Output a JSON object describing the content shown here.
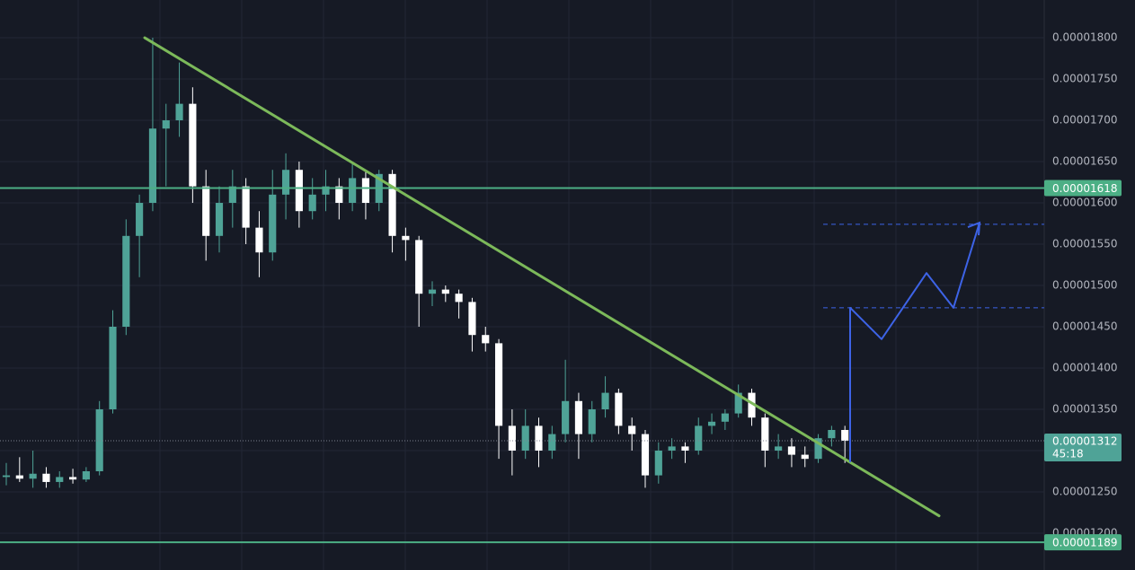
{
  "chart_data": {
    "type": "candlestick",
    "up_color": "#4fa397",
    "down_color": "#ffffff",
    "open": [
      1.268e-05,
      1.27e-05,
      1.266e-05,
      1.272e-05,
      1.262e-05,
      1.268e-05,
      1.265e-05,
      1.275e-05,
      1.35e-05,
      1.45e-05,
      1.56e-05,
      1.6e-05,
      1.69e-05,
      1.7e-05,
      1.72e-05,
      1.62e-05,
      1.56e-05,
      1.6e-05,
      1.62e-05,
      1.57e-05,
      1.54e-05,
      1.61e-05,
      1.64e-05,
      1.59e-05,
      1.61e-05,
      1.62e-05,
      1.6e-05,
      1.63e-05,
      1.6e-05,
      1.635e-05,
      1.56e-05,
      1.555e-05,
      1.49e-05,
      1.495e-05,
      1.49e-05,
      1.48e-05,
      1.44e-05,
      1.43e-05,
      1.33e-05,
      1.3e-05,
      1.33e-05,
      1.3e-05,
      1.32e-05,
      1.36e-05,
      1.32e-05,
      1.35e-05,
      1.37e-05,
      1.33e-05,
      1.32e-05,
      1.27e-05,
      1.3e-05,
      1.305e-05,
      1.3e-05,
      1.33e-05,
      1.335e-05,
      1.345e-05,
      1.37e-05,
      1.34e-05,
      1.3e-05,
      1.305e-05,
      1.295e-05,
      1.29e-05,
      1.315e-05,
      1.325e-05
    ],
    "high": [
      1.285e-05,
      1.292e-05,
      1.3e-05,
      1.28e-05,
      1.275e-05,
      1.278e-05,
      1.28e-05,
      1.36e-05,
      1.47e-05,
      1.58e-05,
      1.61e-05,
      1.8e-05,
      1.72e-05,
      1.77e-05,
      1.74e-05,
      1.64e-05,
      1.62e-05,
      1.64e-05,
      1.63e-05,
      1.59e-05,
      1.64e-05,
      1.66e-05,
      1.65e-05,
      1.63e-05,
      1.64e-05,
      1.63e-05,
      1.65e-05,
      1.64e-05,
      1.64e-05,
      1.64e-05,
      1.57e-05,
      1.56e-05,
      1.505e-05,
      1.5e-05,
      1.495e-05,
      1.485e-05,
      1.45e-05,
      1.435e-05,
      1.35e-05,
      1.35e-05,
      1.34e-05,
      1.33e-05,
      1.41e-05,
      1.37e-05,
      1.36e-05,
      1.39e-05,
      1.375e-05,
      1.34e-05,
      1.325e-05,
      1.31e-05,
      1.315e-05,
      1.31e-05,
      1.34e-05,
      1.345e-05,
      1.35e-05,
      1.38e-05,
      1.375e-05,
      1.345e-05,
      1.32e-05,
      1.315e-05,
      1.305e-05,
      1.32e-05,
      1.33e-05,
      1.33e-05
    ],
    "low": [
      1.258e-05,
      1.262e-05,
      1.255e-05,
      1.255e-05,
      1.255e-05,
      1.26e-05,
      1.262e-05,
      1.27e-05,
      1.345e-05,
      1.44e-05,
      1.51e-05,
      1.59e-05,
      1.62e-05,
      1.68e-05,
      1.6e-05,
      1.53e-05,
      1.54e-05,
      1.57e-05,
      1.55e-05,
      1.51e-05,
      1.53e-05,
      1.58e-05,
      1.57e-05,
      1.58e-05,
      1.59e-05,
      1.58e-05,
      1.59e-05,
      1.58e-05,
      1.59e-05,
      1.54e-05,
      1.53e-05,
      1.45e-05,
      1.475e-05,
      1.48e-05,
      1.46e-05,
      1.42e-05,
      1.42e-05,
      1.29e-05,
      1.27e-05,
      1.29e-05,
      1.28e-05,
      1.29e-05,
      1.31e-05,
      1.29e-05,
      1.31e-05,
      1.34e-05,
      1.32e-05,
      1.3e-05,
      1.255e-05,
      1.26e-05,
      1.29e-05,
      1.285e-05,
      1.295e-05,
      1.32e-05,
      1.325e-05,
      1.34e-05,
      1.33e-05,
      1.28e-05,
      1.29e-05,
      1.28e-05,
      1.28e-05,
      1.285e-05,
      1.305e-05,
      1.285e-05
    ],
    "close": [
      1.27e-05,
      1.266e-05,
      1.272e-05,
      1.262e-05,
      1.268e-05,
      1.265e-05,
      1.275e-05,
      1.35e-05,
      1.45e-05,
      1.56e-05,
      1.6e-05,
      1.69e-05,
      1.7e-05,
      1.72e-05,
      1.62e-05,
      1.56e-05,
      1.6e-05,
      1.62e-05,
      1.57e-05,
      1.54e-05,
      1.61e-05,
      1.64e-05,
      1.59e-05,
      1.61e-05,
      1.62e-05,
      1.6e-05,
      1.63e-05,
      1.6e-05,
      1.635e-05,
      1.56e-05,
      1.555e-05,
      1.49e-05,
      1.495e-05,
      1.49e-05,
      1.48e-05,
      1.44e-05,
      1.43e-05,
      1.33e-05,
      1.3e-05,
      1.33e-05,
      1.3e-05,
      1.32e-05,
      1.36e-05,
      1.32e-05,
      1.35e-05,
      1.37e-05,
      1.33e-05,
      1.32e-05,
      1.27e-05,
      1.3e-05,
      1.305e-05,
      1.3e-05,
      1.33e-05,
      1.335e-05,
      1.345e-05,
      1.37e-05,
      1.34e-05,
      1.3e-05,
      1.305e-05,
      1.295e-05,
      1.29e-05,
      1.315e-05,
      1.325e-05,
      1.312e-05
    ],
    "ylim": [
      1.1554e-05,
      1.8457e-05
    ],
    "yticks": [
      {
        "value": 1.8e-05,
        "label": "0.00001800"
      },
      {
        "value": 1.75e-05,
        "label": "0.00001750"
      },
      {
        "value": 1.7e-05,
        "label": "0.00001700"
      },
      {
        "value": 1.65e-05,
        "label": "0.00001650"
      },
      {
        "value": 1.6e-05,
        "label": "0.00001600"
      },
      {
        "value": 1.55e-05,
        "label": "0.00001550"
      },
      {
        "value": 1.5e-05,
        "label": "0.00001500"
      },
      {
        "value": 1.45e-05,
        "label": "0.00001450"
      },
      {
        "value": 1.4e-05,
        "label": "0.00001400"
      },
      {
        "value": 1.35e-05,
        "label": "0.00001350"
      },
      {
        "value": 1.3e-05,
        "label": "0.00001300"
      },
      {
        "value": 1.25e-05,
        "label": "0.00001250"
      },
      {
        "value": 1.2e-05,
        "label": "0.00001200"
      }
    ],
    "grid": true,
    "levels": [
      {
        "value": 1.618e-05,
        "label": "0.00001618",
        "color": "#4caf85"
      },
      {
        "value": 1.189e-05,
        "label": "0.00001189",
        "color": "#4caf85"
      }
    ],
    "last_price": {
      "value": 1.312e-05,
      "label": "0.00001312",
      "countdown": "45:18",
      "color": "#4fa397"
    },
    "trendline": {
      "values": [
        1.8e-05,
        1.221e-05
      ],
      "color": "#7cb95a"
    },
    "projection": {
      "values": [
        1.286e-05,
        1.473e-05,
        1.435e-05,
        1.515e-05,
        1.473e-05,
        1.576e-05
      ],
      "color": "#3d63e6"
    },
    "targets": {
      "values": [
        1.473e-05,
        1.574e-05
      ],
      "color": "#3d63e6"
    }
  }
}
